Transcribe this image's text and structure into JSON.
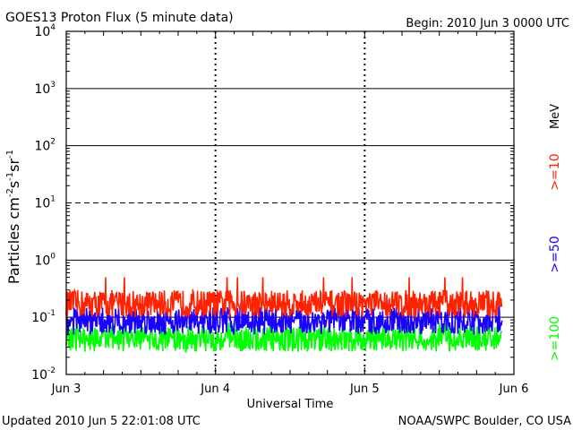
{
  "header": {
    "title": "GOES13 Proton Flux (5 minute data)",
    "begin": "Begin: 2010 Jun 3 0000 UTC"
  },
  "footer": {
    "updated": "Updated 2010 Jun  5 22:01:08 UTC",
    "credit": "NOAA/SWPC Boulder, CO USA"
  },
  "colors": {
    "ge10": "#ff2200",
    "ge50": "#1a00ff",
    "ge100": "#00ff00",
    "frame": "#000000"
  },
  "chart_data": {
    "type": "line",
    "xlabel": "Universal Time",
    "ylabel_base": "Particles cm",
    "ylabel_parts": [
      "-2",
      "s",
      "-1",
      "sr",
      "-1"
    ],
    "scale": "log",
    "ylim": [
      0.01,
      10000
    ],
    "xlim_days": [
      0,
      3
    ],
    "x_ticks": [
      "Jun 3",
      "Jun 4",
      "Jun 5",
      "Jun 6"
    ],
    "y_ticks": [
      {
        "base": "10",
        "exp": "-2",
        "value": 0.01
      },
      {
        "base": "10",
        "exp": "-1",
        "value": 0.1
      },
      {
        "base": "10",
        "exp": "0",
        "value": 1
      },
      {
        "base": "10",
        "exp": "1",
        "value": 10
      },
      {
        "base": "10",
        "exp": "2",
        "value": 100
      },
      {
        "base": "10",
        "exp": "3",
        "value": 1000
      },
      {
        "base": "10",
        "exp": "4",
        "value": 10000
      }
    ],
    "data_end_day": 2.92,
    "unit_label": "MeV",
    "series": [
      {
        "name": ">=10",
        "color": "#ff2200",
        "typical_min": 0.1,
        "typical_max": 0.3,
        "peak": 0.5
      },
      {
        "name": ">=50",
        "color": "#1a00ff",
        "typical_min": 0.05,
        "typical_max": 0.15,
        "peak": 0.2
      },
      {
        "name": ">=100",
        "color": "#00ff00",
        "typical_min": 0.025,
        "typical_max": 0.07,
        "peak": 0.08
      }
    ]
  }
}
